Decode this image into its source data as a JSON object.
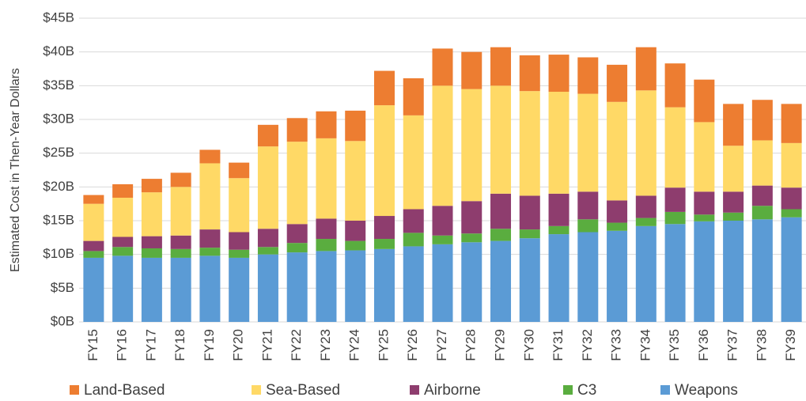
{
  "chart_data": {
    "type": "bar",
    "stacked": true,
    "y_label": "Estimated Cost in Then-Year Dollars",
    "categories": [
      "FY15",
      "FY16",
      "FY17",
      "FY18",
      "FY19",
      "FY20",
      "FY21",
      "FY22",
      "FY23",
      "FY24",
      "FY25",
      "FY26",
      "FY27",
      "FY28",
      "FY29",
      "FY30",
      "FY31",
      "FY32",
      "FY33",
      "FY34",
      "FY35",
      "FY36",
      "FY37",
      "FY38",
      "FY39"
    ],
    "series": [
      {
        "name": "Land-Based",
        "color": "#ed7d31",
        "values": [
          1.3,
          2.0,
          2.0,
          2.1,
          2.0,
          2.3,
          3.2,
          3.5,
          4.0,
          4.5,
          5.1,
          5.5,
          5.5,
          5.5,
          5.7,
          5.3,
          5.5,
          5.4,
          5.5,
          6.4,
          6.5,
          6.3,
          6.2,
          6.0,
          5.8
        ]
      },
      {
        "name": "Sea-Based",
        "color": "#ffd966",
        "values": [
          5.5,
          5.8,
          6.5,
          7.2,
          9.8,
          8.0,
          12.2,
          12.2,
          11.9,
          11.8,
          16.4,
          13.9,
          17.8,
          16.6,
          16.0,
          15.5,
          15.1,
          14.5,
          14.6,
          15.6,
          11.9,
          10.3,
          6.8,
          6.7,
          6.6
        ]
      },
      {
        "name": "Airborne",
        "color": "#8e3d6e",
        "values": [
          1.5,
          1.5,
          1.8,
          2.0,
          2.7,
          2.6,
          2.7,
          2.8,
          3.0,
          3.0,
          3.4,
          3.5,
          4.4,
          4.8,
          5.2,
          5.0,
          4.8,
          4.1,
          3.3,
          3.3,
          3.6,
          3.4,
          3.1,
          3.0,
          3.2
        ]
      },
      {
        "name": "C3",
        "color": "#5aad3f",
        "values": [
          1.0,
          1.3,
          1.4,
          1.3,
          1.2,
          1.2,
          1.1,
          1.4,
          1.8,
          1.4,
          1.5,
          2.0,
          1.3,
          1.3,
          1.8,
          1.3,
          1.2,
          1.9,
          1.2,
          1.2,
          1.8,
          1.0,
          1.2,
          2.0,
          1.2
        ]
      },
      {
        "name": "Weapons",
        "color": "#5b9bd5",
        "values": [
          9.5,
          9.8,
          9.5,
          9.5,
          9.8,
          9.5,
          10.0,
          10.3,
          10.5,
          10.6,
          10.8,
          11.2,
          11.5,
          11.8,
          12.0,
          12.4,
          13.0,
          13.3,
          13.5,
          14.2,
          14.5,
          14.9,
          15.0,
          15.2,
          15.5
        ]
      }
    ],
    "ylim": [
      0,
      45
    ],
    "yticks": [
      {
        "value": 0,
        "label": "$0B"
      },
      {
        "value": 5,
        "label": "$5B"
      },
      {
        "value": 10,
        "label": "$10B"
      },
      {
        "value": 15,
        "label": "$15B"
      },
      {
        "value": 20,
        "label": "$20B"
      },
      {
        "value": 25,
        "label": "$25B"
      },
      {
        "value": 30,
        "label": "$30B"
      },
      {
        "value": 35,
        "label": "$35B"
      },
      {
        "value": 40,
        "label": "$40B"
      },
      {
        "value": 45,
        "label": "$45B"
      }
    ],
    "grid": true,
    "legend": "bottom"
  }
}
